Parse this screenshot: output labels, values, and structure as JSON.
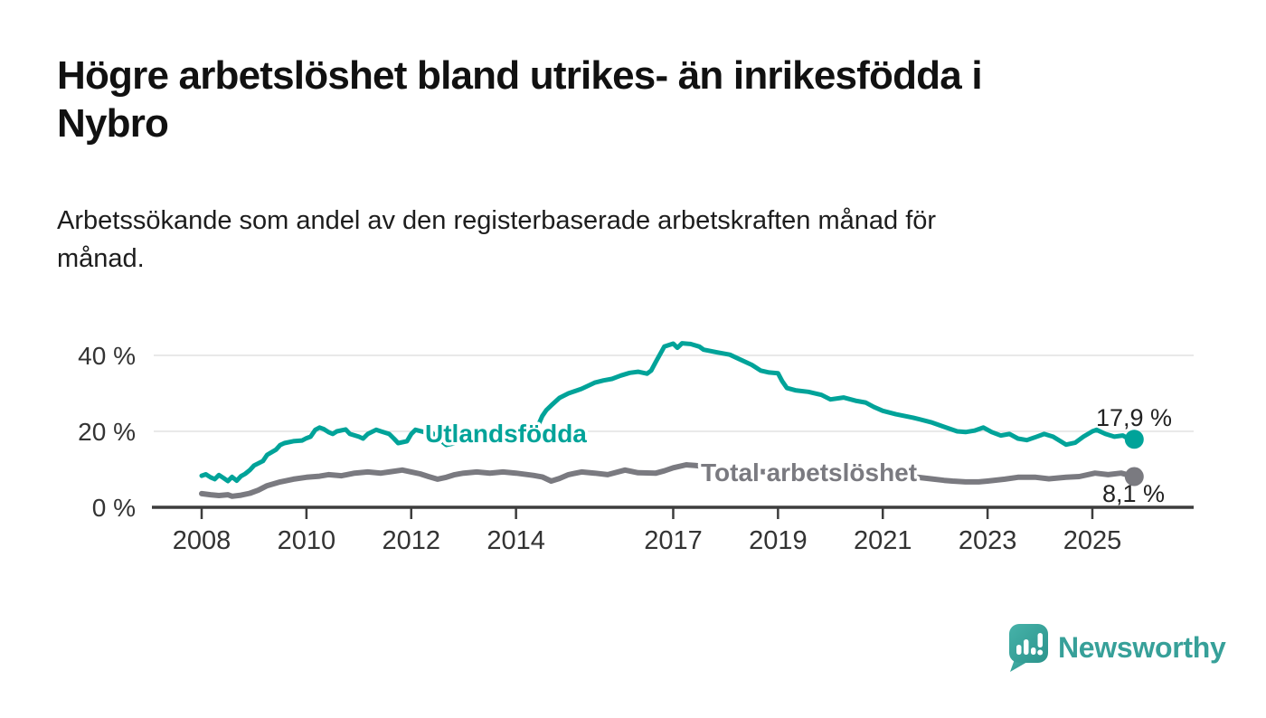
{
  "header": {
    "title": "Högre arbetslöshet bland utrikes- än inrikesfödda i\nNybro",
    "subtitle": "Arbetssökande som andel av den registerbaserade arbetskraften månad för\nmånad."
  },
  "chart_data": {
    "type": "line",
    "title": "Högre arbetslöshet bland utrikes- än inrikesfödda i Nybro",
    "subtitle": "Arbetssökande som andel av den registerbaserade arbetskraften månad för månad.",
    "unit": "%",
    "xlim": [
      2007.0,
      2026.9
    ],
    "ylim": [
      0,
      45
    ],
    "grid": "horizontal",
    "legend_position": "inline-labels",
    "x_ticks": [
      {
        "year": 2008,
        "label": "2008"
      },
      {
        "year": 2010,
        "label": "2010"
      },
      {
        "year": 2012,
        "label": "2012"
      },
      {
        "year": 2014,
        "label": "2014"
      },
      {
        "year": 2017,
        "label": "2017"
      },
      {
        "year": 2019,
        "label": "2019"
      },
      {
        "year": 2021,
        "label": "2021"
      },
      {
        "year": 2023,
        "label": "2023"
      },
      {
        "year": 2025,
        "label": "2025"
      }
    ],
    "y_ticks": [
      {
        "value": 0,
        "label": "0 %"
      },
      {
        "value": 20,
        "label": "20 %"
      },
      {
        "value": 40,
        "label": "40 %"
      }
    ],
    "colors": {
      "grid": "#e2e2e2",
      "axis": "#3d3d3d",
      "axis_text": "#333333",
      "value_label": "#222222"
    },
    "series": [
      {
        "name": "Utlandsfödda",
        "color": "#00a399",
        "end_label": "17,9 %",
        "end_value": 17.9,
        "points": [
          [
            2008.0,
            8.3
          ],
          [
            2008.08,
            8.7
          ],
          [
            2008.17,
            7.9
          ],
          [
            2008.25,
            7.4
          ],
          [
            2008.33,
            8.5
          ],
          [
            2008.42,
            7.7
          ],
          [
            2008.5,
            6.9
          ],
          [
            2008.58,
            8.0
          ],
          [
            2008.67,
            7.0
          ],
          [
            2008.75,
            8.2
          ],
          [
            2008.83,
            8.8
          ],
          [
            2008.92,
            9.8
          ],
          [
            2009.0,
            11.0
          ],
          [
            2009.17,
            12.2
          ],
          [
            2009.25,
            13.8
          ],
          [
            2009.42,
            15.2
          ],
          [
            2009.5,
            16.4
          ],
          [
            2009.58,
            16.9
          ],
          [
            2009.75,
            17.4
          ],
          [
            2009.92,
            17.6
          ],
          [
            2010.0,
            18.2
          ],
          [
            2010.08,
            18.6
          ],
          [
            2010.17,
            20.4
          ],
          [
            2010.25,
            21.0
          ],
          [
            2010.33,
            20.6
          ],
          [
            2010.42,
            19.8
          ],
          [
            2010.5,
            19.3
          ],
          [
            2010.58,
            20.0
          ],
          [
            2010.75,
            20.5
          ],
          [
            2010.83,
            19.3
          ],
          [
            2011.0,
            18.6
          ],
          [
            2011.08,
            18.1
          ],
          [
            2011.17,
            19.3
          ],
          [
            2011.33,
            20.4
          ],
          [
            2011.42,
            20.0
          ],
          [
            2011.58,
            19.3
          ],
          [
            2011.67,
            18.1
          ],
          [
            2011.75,
            16.9
          ],
          [
            2011.92,
            17.4
          ],
          [
            2012.0,
            19.3
          ],
          [
            2012.08,
            20.4
          ],
          [
            2012.25,
            19.8
          ],
          [
            2012.33,
            20.5
          ],
          [
            2012.42,
            19.3
          ],
          [
            2012.58,
            17.4
          ],
          [
            2012.67,
            16.4
          ],
          [
            2012.83,
            16.9
          ],
          [
            2012.92,
            17.6
          ],
          [
            2013.0,
            19.2
          ],
          [
            2013.17,
            19.8
          ],
          [
            2013.25,
            20.0
          ],
          [
            2013.42,
            19.3
          ],
          [
            2013.5,
            18.2
          ],
          [
            2013.58,
            18.8
          ],
          [
            2013.75,
            19.6
          ],
          [
            2013.83,
            20.0
          ],
          [
            2014.0,
            19.1
          ],
          [
            2014.17,
            18.6
          ],
          [
            2014.25,
            19.0
          ],
          [
            2014.33,
            19.6
          ],
          [
            2014.42,
            21.5
          ],
          [
            2014.5,
            24.0
          ],
          [
            2014.58,
            25.6
          ],
          [
            2014.67,
            26.8
          ],
          [
            2014.83,
            28.8
          ],
          [
            2015.0,
            30.0
          ],
          [
            2015.25,
            31.2
          ],
          [
            2015.5,
            32.8
          ],
          [
            2015.67,
            33.4
          ],
          [
            2015.83,
            33.8
          ],
          [
            2016.0,
            34.7
          ],
          [
            2016.17,
            35.4
          ],
          [
            2016.33,
            35.7
          ],
          [
            2016.5,
            35.2
          ],
          [
            2016.58,
            36.0
          ],
          [
            2016.67,
            38.3
          ],
          [
            2016.83,
            42.3
          ],
          [
            2017.0,
            43.1
          ],
          [
            2017.08,
            42.0
          ],
          [
            2017.17,
            43.2
          ],
          [
            2017.33,
            43.0
          ],
          [
            2017.5,
            42.3
          ],
          [
            2017.58,
            41.5
          ],
          [
            2017.83,
            40.8
          ],
          [
            2018.08,
            40.2
          ],
          [
            2018.25,
            39.1
          ],
          [
            2018.5,
            37.5
          ],
          [
            2018.67,
            36.0
          ],
          [
            2018.83,
            35.5
          ],
          [
            2019.0,
            35.3
          ],
          [
            2019.08,
            33.2
          ],
          [
            2019.17,
            31.4
          ],
          [
            2019.33,
            30.8
          ],
          [
            2019.58,
            30.4
          ],
          [
            2019.83,
            29.6
          ],
          [
            2020.0,
            28.4
          ],
          [
            2020.25,
            28.9
          ],
          [
            2020.5,
            28.0
          ],
          [
            2020.67,
            27.6
          ],
          [
            2020.83,
            26.4
          ],
          [
            2021.0,
            25.4
          ],
          [
            2021.25,
            24.5
          ],
          [
            2021.58,
            23.6
          ],
          [
            2021.92,
            22.4
          ],
          [
            2022.17,
            21.2
          ],
          [
            2022.42,
            20.0
          ],
          [
            2022.58,
            19.8
          ],
          [
            2022.75,
            20.2
          ],
          [
            2022.92,
            21.0
          ],
          [
            2023.08,
            19.8
          ],
          [
            2023.25,
            18.9
          ],
          [
            2023.42,
            19.3
          ],
          [
            2023.58,
            18.1
          ],
          [
            2023.75,
            17.7
          ],
          [
            2023.92,
            18.5
          ],
          [
            2024.08,
            19.3
          ],
          [
            2024.25,
            18.6
          ],
          [
            2024.5,
            16.5
          ],
          [
            2024.67,
            17.0
          ],
          [
            2024.83,
            18.6
          ],
          [
            2025.0,
            20.0
          ],
          [
            2025.08,
            20.4
          ],
          [
            2025.25,
            19.3
          ],
          [
            2025.42,
            18.6
          ],
          [
            2025.58,
            18.9
          ],
          [
            2025.67,
            18.2
          ],
          [
            2025.8,
            17.9
          ]
        ]
      },
      {
        "name": "Total arbetslöshet",
        "color": "#7a7a80",
        "end_label": "8,1 %",
        "end_value": 8.1,
        "points": [
          [
            2008.0,
            3.6
          ],
          [
            2008.17,
            3.3
          ],
          [
            2008.33,
            3.1
          ],
          [
            2008.5,
            3.3
          ],
          [
            2008.58,
            2.9
          ],
          [
            2008.75,
            3.2
          ],
          [
            2008.92,
            3.7
          ],
          [
            2009.08,
            4.5
          ],
          [
            2009.25,
            5.7
          ],
          [
            2009.5,
            6.7
          ],
          [
            2009.75,
            7.4
          ],
          [
            2010.0,
            7.9
          ],
          [
            2010.25,
            8.2
          ],
          [
            2010.42,
            8.6
          ],
          [
            2010.67,
            8.3
          ],
          [
            2010.92,
            9.0
          ],
          [
            2011.17,
            9.3
          ],
          [
            2011.42,
            9.0
          ],
          [
            2011.58,
            9.3
          ],
          [
            2011.83,
            9.8
          ],
          [
            2012.0,
            9.3
          ],
          [
            2012.17,
            8.8
          ],
          [
            2012.33,
            8.1
          ],
          [
            2012.5,
            7.4
          ],
          [
            2012.67,
            7.9
          ],
          [
            2012.83,
            8.6
          ],
          [
            2013.0,
            9.0
          ],
          [
            2013.25,
            9.3
          ],
          [
            2013.5,
            9.0
          ],
          [
            2013.75,
            9.3
          ],
          [
            2014.0,
            9.0
          ],
          [
            2014.33,
            8.4
          ],
          [
            2014.5,
            8.0
          ],
          [
            2014.67,
            6.9
          ],
          [
            2014.83,
            7.6
          ],
          [
            2015.0,
            8.6
          ],
          [
            2015.25,
            9.3
          ],
          [
            2015.5,
            9.0
          ],
          [
            2015.75,
            8.6
          ],
          [
            2016.08,
            9.8
          ],
          [
            2016.33,
            9.1
          ],
          [
            2016.67,
            9.0
          ],
          [
            2016.83,
            9.6
          ],
          [
            2017.0,
            10.4
          ],
          [
            2017.25,
            11.2
          ],
          [
            2017.42,
            11.0
          ],
          [
            2017.58,
            10.8
          ],
          [
            2017.83,
            10.4
          ],
          [
            2018.08,
            10.1
          ],
          [
            2018.33,
            9.8
          ],
          [
            2018.67,
            9.4
          ],
          [
            2019.0,
            9.2
          ],
          [
            2019.33,
            9.0
          ],
          [
            2019.67,
            9.2
          ],
          [
            2020.0,
            9.4
          ],
          [
            2020.33,
            9.7
          ],
          [
            2020.67,
            9.3
          ],
          [
            2021.0,
            8.9
          ],
          [
            2021.33,
            8.5
          ],
          [
            2021.67,
            7.9
          ],
          [
            2021.92,
            7.5
          ],
          [
            2022.17,
            7.1
          ],
          [
            2022.33,
            6.9
          ],
          [
            2022.58,
            6.7
          ],
          [
            2022.83,
            6.7
          ],
          [
            2023.0,
            6.9
          ],
          [
            2023.33,
            7.4
          ],
          [
            2023.58,
            7.9
          ],
          [
            2023.92,
            7.9
          ],
          [
            2024.17,
            7.5
          ],
          [
            2024.5,
            7.9
          ],
          [
            2024.75,
            8.1
          ],
          [
            2025.05,
            9.0
          ],
          [
            2025.3,
            8.6
          ],
          [
            2025.55,
            9.0
          ],
          [
            2025.8,
            8.1
          ]
        ]
      }
    ]
  },
  "footer": {
    "brand": "Newsworthy",
    "brand_color": "#37a099"
  }
}
